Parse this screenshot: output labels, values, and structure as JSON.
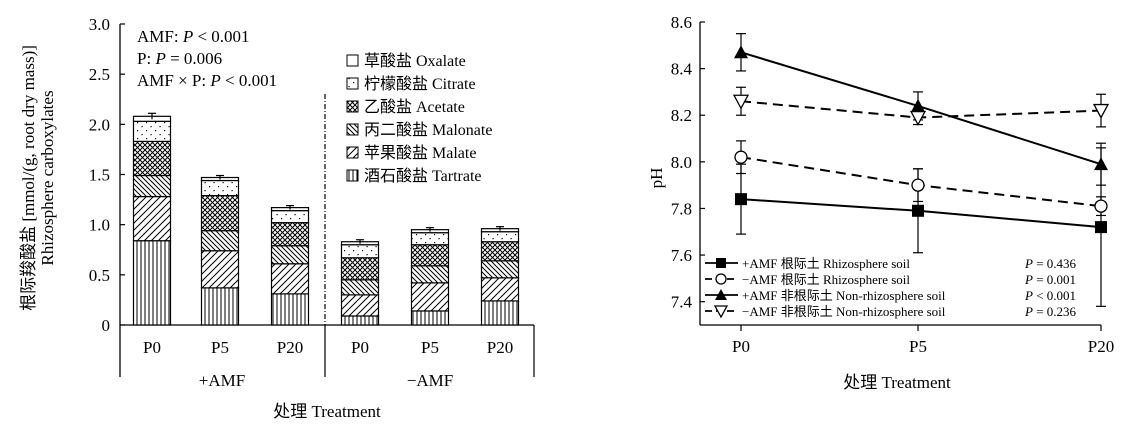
{
  "chart_data": [
    {
      "type": "bar",
      "stacked": true,
      "ylabel_lines": [
        "根际羧酸盐 [mmol/(g, root dry mass)]",
        "Rhizosphere carboxylates"
      ],
      "xlabel": "处理 Treatment",
      "ylim": [
        0,
        3.0
      ],
      "yticks": [
        "0",
        "0.5",
        "1.0",
        "1.5",
        "2.0",
        "2.5",
        "3.0"
      ],
      "groups": [
        {
          "label": "+AMF",
          "categories": [
            "P0",
            "P5",
            "P20"
          ]
        },
        {
          "label": "−AMF",
          "categories": [
            "P0",
            "P5",
            "P20"
          ]
        }
      ],
      "stats": [
        {
          "prefix": "AMF: ",
          "var": "P",
          "rel": " < 0.001"
        },
        {
          "prefix": "P: ",
          "var": "P",
          "rel": " = 0.006"
        },
        {
          "prefix": "AMF × P: ",
          "var": "P",
          "rel": " < 0.001"
        }
      ],
      "series": [
        {
          "name": "酒石酸盐 Tartrate",
          "pattern": "vlines",
          "values": [
            0.84,
            0.37,
            0.31,
            0.09,
            0.14,
            0.24
          ]
        },
        {
          "name": "苹果酸盐 Malate",
          "pattern": "fdiag",
          "values": [
            0.44,
            0.37,
            0.3,
            0.21,
            0.28,
            0.23
          ]
        },
        {
          "name": "丙二酸盐 Malonate",
          "pattern": "bdiag",
          "values": [
            0.21,
            0.2,
            0.18,
            0.15,
            0.17,
            0.17
          ]
        },
        {
          "name": "乙酸盐 Acetate",
          "pattern": "cross",
          "values": [
            0.34,
            0.35,
            0.23,
            0.22,
            0.21,
            0.19
          ]
        },
        {
          "name": "柠檬酸盐 Citrate",
          "pattern": "dots",
          "values": [
            0.2,
            0.15,
            0.12,
            0.13,
            0.12,
            0.1
          ]
        },
        {
          "name": "草酸盐 Oxalate",
          "pattern": "white",
          "values": [
            0.05,
            0.03,
            0.03,
            0.03,
            0.03,
            0.03
          ]
        }
      ],
      "totals": [
        2.08,
        1.47,
        1.17,
        0.83,
        0.95,
        0.96
      ],
      "total_errors": [
        0.03,
        0.02,
        0.02,
        0.02,
        0.02,
        0.02
      ]
    },
    {
      "type": "line",
      "ylabel": "pH",
      "xlabel": "处理 Treatment",
      "categories": [
        "P0",
        "P5",
        "P20"
      ],
      "ylim": [
        7.3,
        8.6
      ],
      "yticks": [
        "7.4",
        "7.6",
        "7.8",
        "8.0",
        "8.2",
        "8.4",
        "8.6"
      ],
      "series": [
        {
          "name": "+AMF 根际土 Rhizosphere soil",
          "p_label": " = 0.436",
          "marker": "square",
          "dash": false,
          "values": [
            7.84,
            7.79,
            7.72
          ],
          "errors": [
            0.15,
            0.18,
            0.34
          ]
        },
        {
          "name": "−AMF 根际土 Rhizosphere soil",
          "p_label": " = 0.001",
          "marker": "circle",
          "dash": true,
          "values": [
            8.02,
            7.9,
            7.81
          ],
          "errors": [
            0.07,
            0.07,
            0.04
          ]
        },
        {
          "name": "+AMF 非根际土 Non-rhizosphere soil",
          "p_label": " < 0.001",
          "marker": "triangle-up",
          "dash": false,
          "values": [
            8.47,
            8.24,
            7.99
          ],
          "errors": [
            0.08,
            0.06,
            0.09
          ]
        },
        {
          "name": "−AMF 非根际土 Non-rhizosphere soil",
          "p_label": " = 0.236",
          "marker": "triangle-down",
          "dash": true,
          "values": [
            8.26,
            8.19,
            8.22
          ],
          "errors": [
            0.06,
            0.03,
            0.07
          ]
        }
      ],
      "p_var": "P"
    }
  ]
}
